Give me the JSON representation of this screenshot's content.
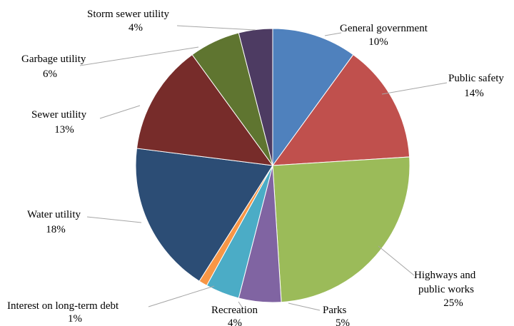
{
  "chart_data": {
    "type": "pie",
    "title": "",
    "slices": [
      {
        "label": "General government",
        "value": 10,
        "value_label": "10%",
        "color": "#4f81bd"
      },
      {
        "label": "Public safety",
        "value": 14,
        "value_label": "14%",
        "color": "#c0504d"
      },
      {
        "label": "Highways and public works",
        "value": 25,
        "value_label": "25%",
        "color": "#9bbb59"
      },
      {
        "label": "Parks",
        "value": 5,
        "value_label": "5%",
        "color": "#8064a2"
      },
      {
        "label": "Recreation",
        "value": 4,
        "value_label": "4%",
        "color": "#4bacc6"
      },
      {
        "label": "Interest on long-term debt",
        "value": 1,
        "value_label": "1%",
        "color": "#f79646"
      },
      {
        "label": "Water utility",
        "value": 18,
        "value_label": "18%",
        "color": "#2c4d75"
      },
      {
        "label": "Sewer utility",
        "value": 13,
        "value_label": "13%",
        "color": "#772c2a"
      },
      {
        "label": "Garbage utility",
        "value": 6,
        "value_label": "6%",
        "color": "#5f7530"
      },
      {
        "label": "Storm sewer utility",
        "value": 4,
        "value_label": "4%",
        "color": "#4d3b62"
      }
    ]
  }
}
